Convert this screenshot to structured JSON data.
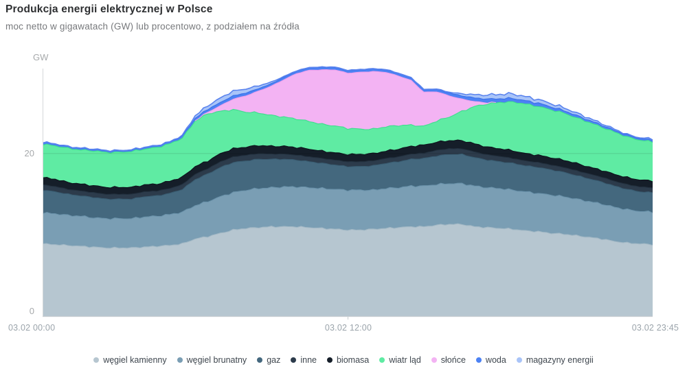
{
  "header": {
    "title": "Produkcja energii elektrycznej w Polsce",
    "subtitle": "moc netto w gigawatach (GW) lub procentowo, z podziałem na źródła"
  },
  "axes": {
    "y_unit": "GW",
    "y_ticks": [
      "0",
      "20"
    ],
    "x_ticks": [
      "03.02 00:00",
      "03.02 12:00",
      "03.02 23:45"
    ]
  },
  "chart_data": {
    "type": "area",
    "stacked": true,
    "title": "Produkcja energii elektrycznej w Polsce",
    "xlabel": "",
    "ylabel": "GW",
    "ylim": [
      0,
      31.3
    ],
    "grid_y_values": [
      20
    ],
    "legend_position": "bottom",
    "x": [
      "00:00",
      "00:30",
      "01:00",
      "01:30",
      "02:00",
      "02:30",
      "03:00",
      "03:30",
      "04:00",
      "04:30",
      "05:00",
      "05:30",
      "06:00",
      "06:30",
      "07:00",
      "07:30",
      "08:00",
      "08:30",
      "09:00",
      "09:30",
      "10:00",
      "10:30",
      "11:00",
      "11:30",
      "12:00",
      "12:30",
      "13:00",
      "13:30",
      "14:00",
      "14:30",
      "15:00",
      "15:30",
      "16:00",
      "16:30",
      "17:00",
      "17:30",
      "18:00",
      "18:30",
      "19:00",
      "19:30",
      "20:00",
      "20:30",
      "21:00",
      "21:30",
      "22:00",
      "22:30",
      "23:00",
      "23:30",
      "23:45"
    ],
    "series": [
      {
        "key": "wegiel-kamienny",
        "name": "węgiel kamienny",
        "color": "#b6c6d0",
        "stroke": "#a2b8c5",
        "values": [
          8.9,
          8.8,
          8.7,
          8.6,
          8.5,
          8.4,
          8.4,
          8.4,
          8.5,
          8.6,
          8.7,
          8.9,
          9.5,
          9.8,
          10.2,
          10.6,
          10.8,
          10.9,
          11.0,
          11.0,
          11.0,
          10.9,
          10.8,
          10.7,
          10.6,
          10.6,
          10.7,
          10.8,
          10.9,
          11.0,
          11.0,
          11.2,
          11.3,
          11.3,
          11.0,
          10.9,
          10.8,
          10.7,
          10.5,
          10.4,
          10.2,
          10.1,
          9.9,
          9.7,
          9.5,
          9.2,
          9.0,
          8.9,
          8.8
        ]
      },
      {
        "key": "wegiel-brunatny",
        "name": "węgiel brunatny",
        "color": "#7a9eb4",
        "stroke": "#6a92aa",
        "values": [
          3.8,
          3.8,
          3.7,
          3.7,
          3.6,
          3.6,
          3.6,
          3.6,
          3.7,
          3.7,
          3.8,
          3.9,
          4.1,
          4.3,
          4.5,
          4.6,
          4.7,
          4.8,
          4.8,
          4.9,
          4.9,
          4.9,
          4.9,
          4.9,
          4.9,
          4.9,
          4.8,
          4.9,
          4.9,
          5.0,
          5.0,
          5.0,
          5.0,
          5.0,
          5.0,
          4.9,
          4.9,
          4.8,
          4.8,
          4.7,
          4.7,
          4.6,
          4.5,
          4.4,
          4.3,
          4.2,
          4.1,
          4.0,
          4.0
        ]
      },
      {
        "key": "gaz",
        "name": "gaz",
        "color": "#44687e",
        "stroke": "#395c71",
        "values": [
          2.8,
          2.7,
          2.6,
          2.5,
          2.5,
          2.4,
          2.4,
          2.4,
          2.5,
          2.5,
          2.6,
          2.8,
          3.2,
          3.4,
          3.6,
          3.7,
          3.6,
          3.6,
          3.5,
          3.4,
          3.3,
          3.2,
          3.1,
          3.0,
          2.9,
          2.9,
          3.0,
          3.1,
          3.2,
          3.3,
          3.4,
          3.5,
          3.6,
          3.6,
          3.5,
          3.4,
          3.3,
          3.3,
          3.2,
          3.2,
          3.1,
          3.0,
          2.9,
          2.8,
          2.7,
          2.6,
          2.5,
          2.4,
          2.4
        ]
      },
      {
        "key": "inne",
        "name": "inne",
        "color": "#2c3b4b",
        "stroke": "#22303e",
        "values": [
          0.65,
          0.65,
          0.6,
          0.6,
          0.6,
          0.6,
          0.6,
          0.6,
          0.6,
          0.6,
          0.6,
          0.6,
          0.65,
          0.65,
          0.7,
          0.7,
          0.7,
          0.7,
          0.65,
          0.65,
          0.6,
          0.6,
          0.6,
          0.6,
          0.6,
          0.6,
          0.6,
          0.6,
          0.6,
          0.65,
          0.65,
          0.7,
          0.7,
          0.7,
          0.7,
          0.65,
          0.65,
          0.6,
          0.6,
          0.6,
          0.6,
          0.6,
          0.6,
          0.6,
          0.6,
          0.6,
          0.6,
          0.6,
          0.6
        ]
      },
      {
        "key": "biomasa",
        "name": "biomasa",
        "color": "#151e29",
        "stroke": "#0d141c",
        "values": [
          0.9,
          0.9,
          0.85,
          0.85,
          0.85,
          0.85,
          0.85,
          0.85,
          0.85,
          0.85,
          0.9,
          0.9,
          0.95,
          0.95,
          1.0,
          1.0,
          1.0,
          1.0,
          0.95,
          0.95,
          0.95,
          0.95,
          0.9,
          0.9,
          0.9,
          0.9,
          0.9,
          0.9,
          0.95,
          0.95,
          1.0,
          1.0,
          1.0,
          1.0,
          1.0,
          0.95,
          0.95,
          0.95,
          0.9,
          0.9,
          0.9,
          0.9,
          0.9,
          0.85,
          0.85,
          0.85,
          0.85,
          0.85,
          0.85
        ]
      },
      {
        "key": "wiatr-lad",
        "name": "wiatr ląd",
        "color": "#5feba3",
        "stroke": "#3edd8e",
        "values": [
          4.1,
          4.1,
          4.2,
          4.2,
          4.3,
          4.3,
          4.3,
          4.4,
          4.4,
          4.5,
          4.6,
          4.8,
          5.6,
          5.8,
          5.2,
          4.8,
          4.3,
          4.0,
          3.8,
          3.6,
          3.5,
          3.4,
          3.3,
          3.3,
          3.2,
          3.1,
          3.0,
          3.0,
          2.9,
          2.6,
          2.3,
          2.6,
          2.9,
          3.6,
          4.6,
          5.3,
          5.7,
          6.0,
          6.1,
          6.0,
          5.9,
          5.8,
          5.6,
          5.5,
          5.3,
          5.2,
          5.0,
          4.9,
          4.8
        ]
      },
      {
        "key": "slonce",
        "name": "słońce",
        "color": "#f3b3f3",
        "stroke": "#ec9fec",
        "values": [
          0,
          0,
          0,
          0,
          0,
          0,
          0,
          0,
          0,
          0,
          0,
          0,
          0.05,
          0.2,
          0.7,
          1.3,
          2.0,
          2.7,
          3.6,
          4.6,
          5.6,
          6.3,
          6.7,
          6.9,
          6.8,
          7.0,
          7.1,
          6.7,
          6.1,
          5.5,
          4.2,
          3.6,
          2.6,
          1.5,
          0.6,
          0.15,
          0,
          0,
          0,
          0,
          0,
          0,
          0,
          0,
          0,
          0,
          0,
          0,
          0
        ]
      },
      {
        "key": "woda",
        "name": "woda",
        "color": "#4c82f4",
        "stroke": "#3a70e8",
        "values": [
          0.2,
          0.2,
          0.18,
          0.18,
          0.18,
          0.18,
          0.18,
          0.18,
          0.18,
          0.2,
          0.2,
          0.25,
          0.3,
          0.35,
          0.4,
          0.4,
          0.35,
          0.3,
          0.3,
          0.3,
          0.3,
          0.3,
          0.3,
          0.3,
          0.3,
          0.3,
          0.3,
          0.3,
          0.3,
          0.3,
          0.3,
          0.3,
          0.35,
          0.4,
          0.45,
          0.45,
          0.45,
          0.45,
          0.4,
          0.4,
          0.35,
          0.3,
          0.3,
          0.25,
          0.25,
          0.2,
          0.2,
          0.2,
          0.2
        ]
      },
      {
        "key": "magazyny-energii",
        "name": "magazyny energii",
        "color": "#a9c4f8",
        "stroke": "#5b84ee",
        "values": [
          0.05,
          0.05,
          0.05,
          0.05,
          0.05,
          0.05,
          0.05,
          0.05,
          0.05,
          0.05,
          0.05,
          0.1,
          0.3,
          0.45,
          0.55,
          0.6,
          0.5,
          0.35,
          0.2,
          0.1,
          0.05,
          0.05,
          0.05,
          0.05,
          0.05,
          0.05,
          0.05,
          0.05,
          0.05,
          0.05,
          0.05,
          0.05,
          0.1,
          0.25,
          0.4,
          0.5,
          0.55,
          0.55,
          0.5,
          0.45,
          0.4,
          0.35,
          0.3,
          0.25,
          0.2,
          0.15,
          0.1,
          0.1,
          0.15
        ]
      }
    ]
  }
}
